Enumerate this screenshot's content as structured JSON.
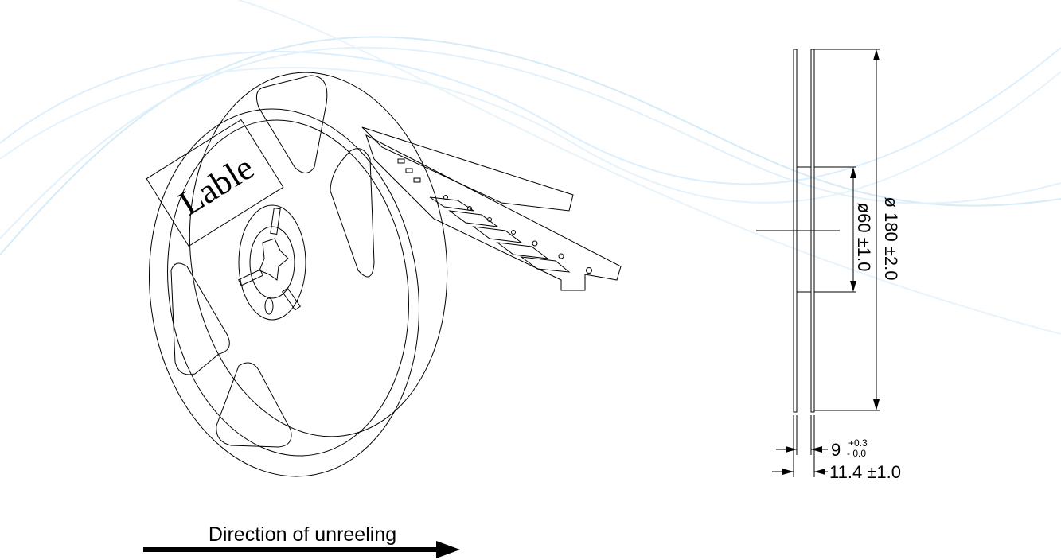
{
  "reel": {
    "label": "Lable"
  },
  "side_view": {
    "outer_diameter": "ø 180 ±2.0",
    "hub_diameter": "ø60 ±1.0",
    "inner_width": "9",
    "inner_width_tol_plus": "+0.3",
    "inner_width_tol_minus": "- 0.0",
    "outer_width": "11.4 ±1.0"
  },
  "direction": {
    "label": "Direction of unreeling"
  }
}
